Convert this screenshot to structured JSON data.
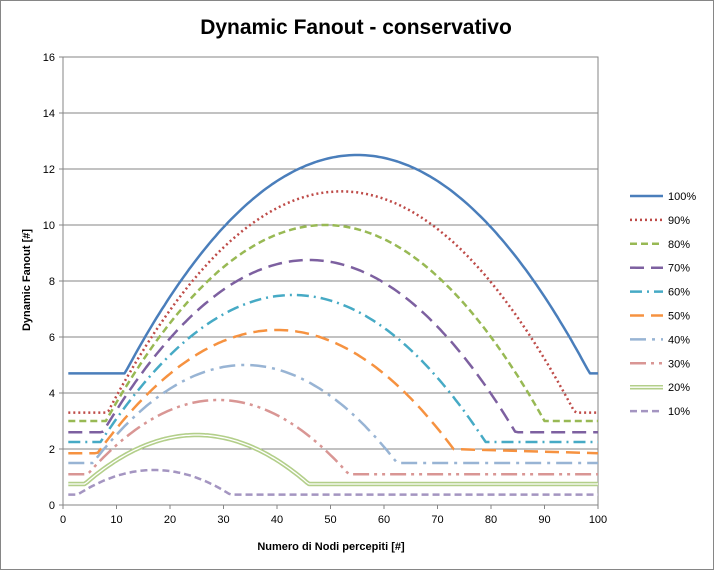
{
  "chart_data": {
    "type": "line",
    "title": "Dynamic Fanout - conservativo",
    "xlabel": "Numero di Nodi percepiti [#]",
    "ylabel": "Dynamic Fanout [#]",
    "xlim": [
      0,
      100
    ],
    "ylim": [
      0,
      16
    ],
    "x_ticks": [
      "0",
      "10",
      "20",
      "30",
      "40",
      "50",
      "60",
      "70",
      "80",
      "90",
      "100"
    ],
    "y_ticks": [
      "0",
      "2",
      "4",
      "6",
      "8",
      "10",
      "12",
      "14",
      "16"
    ],
    "grid": "horizontal",
    "legend_position": "right",
    "series": [
      {
        "name": "100%",
        "color": "#4a7ebb",
        "dash": "solid",
        "peak_x": 55,
        "peak_y": 12.5,
        "floor_x": 100,
        "floor_y": 4.7
      },
      {
        "name": "90%",
        "color": "#be4b48",
        "dash": "dotted",
        "peak_x": 52,
        "peak_y": 11.2,
        "floor_x": 98,
        "floor_y": 3.3
      },
      {
        "name": "80%",
        "color": "#98b954",
        "dash": "dashed",
        "peak_x": 49,
        "peak_y": 10.0,
        "floor_x": 92,
        "floor_y": 3.0
      },
      {
        "name": "70%",
        "color": "#7d60a0",
        "dash": "long-dash",
        "peak_x": 46,
        "peak_y": 8.75,
        "floor_x": 85,
        "floor_y": 2.6
      },
      {
        "name": "60%",
        "color": "#46aac5",
        "dash": "dash-dot",
        "peak_x": 43,
        "peak_y": 7.5,
        "floor_x": 79,
        "floor_y": 2.25
      },
      {
        "name": "50%",
        "color": "#f69240",
        "dash": "long-dash",
        "peak_x": 40,
        "peak_y": 6.25,
        "floor_x": 73,
        "floor_y": 1.85
      },
      {
        "name": "40%",
        "color": "#98b4d4",
        "dash": "long-dash-dot",
        "peak_x": 34,
        "peak_y": 5.0,
        "floor_x": 64,
        "floor_y": 1.5
      },
      {
        "name": "30%",
        "color": "#d99694",
        "dash": "long-dash-dot-dot",
        "peak_x": 29,
        "peak_y": 3.75,
        "floor_x": 58,
        "floor_y": 1.1
      },
      {
        "name": "20%",
        "color": "#b3cf8a",
        "dash": "double",
        "peak_x": 25,
        "peak_y": 2.5,
        "floor_x": 46,
        "floor_y": 0.75
      },
      {
        "name": "10%",
        "color": "#a495c1",
        "dash": "dashed",
        "peak_x": 17,
        "peak_y": 1.25,
        "floor_x": 32,
        "floor_y": 0.37
      }
    ]
  }
}
